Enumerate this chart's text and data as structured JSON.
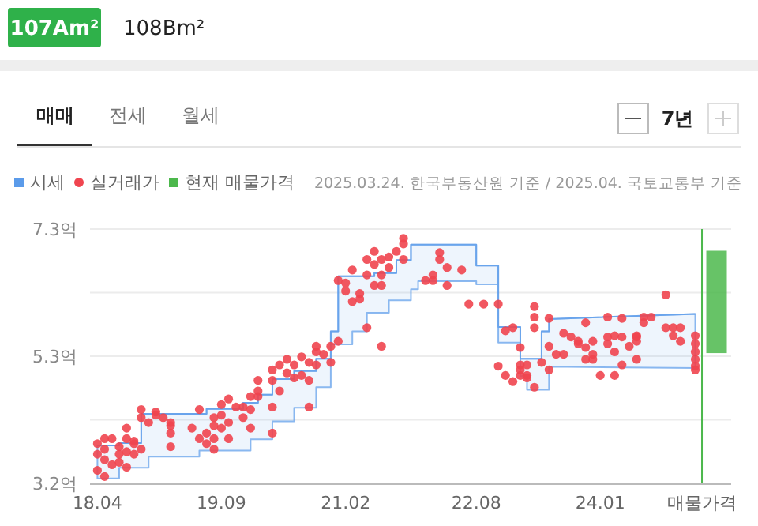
{
  "chart_data": {
    "type": "scatter",
    "annotations": [
      "107Am²",
      "108Bm²",
      "매매",
      "전세",
      "월세",
      "7년",
      "2025.03.24. 한국부동산원 기준 / 2025.04. 국토교통부 기준"
    ],
    "xlim": [
      "2018-03",
      "2025-07"
    ],
    "xticks": [
      {
        "value": "2018-04",
        "label": "18.04"
      },
      {
        "value": "2019-09",
        "label": "19.09"
      },
      {
        "value": "2021-02",
        "label": "21.02"
      },
      {
        "value": "2022-08",
        "label": "22.08"
      },
      {
        "value": "2024-01",
        "label": "24.01"
      },
      {
        "value": "2025-03",
        "label": "매물가격"
      }
    ],
    "ylim": [
      3.2,
      7.3
    ],
    "yticks": [
      {
        "value": 3.2,
        "label": "3.2억"
      },
      {
        "value": 4.225,
        "label": null
      },
      {
        "value": 5.25,
        "label": "5.3억"
      },
      {
        "value": 6.275,
        "label": null
      },
      {
        "value": 7.3,
        "label": "7.3억"
      }
    ],
    "grid": "y",
    "legend": "top left",
    "ref_lines": [
      {
        "axis": "x",
        "value": "2025-03",
        "color": "#4cb84c"
      }
    ],
    "series": [
      {
        "name": "시세",
        "type": "line",
        "color": "#5b9bea",
        "x": [
          "2018-04",
          "2018-07",
          "2018-07",
          "2018-10",
          "2018-10",
          "2018-11",
          "2018-11",
          "2019-06",
          "2019-06",
          "2019-07",
          "2019-07",
          "2019-12",
          "2019-12",
          "2020-01",
          "2020-01",
          "2020-02",
          "2020-02",
          "2020-04",
          "2020-04",
          "2020-07",
          "2020-07",
          "2020-10",
          "2020-10",
          "2020-12",
          "2020-12",
          "2021-01",
          "2021-01",
          "2021-03",
          "2021-03",
          "2021-05",
          "2021-05",
          "2021-06",
          "2021-06",
          "2021-08",
          "2021-08",
          "2021-09",
          "2021-09",
          "2021-11",
          "2021-11",
          "2021-12",
          "2021-12",
          "2022-08",
          "2022-08",
          "2022-11",
          "2022-11",
          "2023-02",
          "2023-02",
          "2023-03",
          "2023-03",
          "2023-05",
          "2023-05",
          "2023-06",
          "2023-06",
          "2025-02"
        ],
        "values": [
          3.81,
          3.81,
          3.85,
          3.85,
          4.32,
          4.32,
          4.32,
          4.32,
          4.32,
          4.32,
          4.4,
          4.4,
          4.5,
          4.5,
          4.5,
          4.5,
          4.63,
          4.63,
          4.88,
          4.88,
          5.01,
          5.01,
          5.21,
          5.21,
          5.65,
          5.65,
          6.54,
          6.54,
          6.54,
          6.54,
          6.54,
          6.54,
          6.59,
          6.59,
          6.59,
          6.59,
          6.8,
          6.8,
          7.05,
          7.05,
          7.05,
          7.05,
          6.71,
          6.71,
          5.72,
          5.72,
          5.21,
          5.21,
          5.21,
          5.21,
          5.65,
          5.65,
          5.85,
          5.93
        ],
        "upper": [
          3.81,
          3.81,
          3.85,
          3.85,
          4.32,
          4.32,
          4.32,
          4.32,
          4.32,
          4.32,
          4.4,
          4.4,
          4.5,
          4.5,
          4.5,
          4.5,
          4.63,
          4.63,
          4.88,
          4.88,
          5.01,
          5.01,
          5.21,
          5.21,
          5.65,
          5.65,
          6.54,
          6.54,
          6.54,
          6.54,
          6.54,
          6.54,
          6.59,
          6.59,
          6.59,
          6.59,
          6.8,
          6.8,
          7.05,
          7.05,
          7.05,
          7.05,
          6.71,
          6.71,
          5.72,
          5.72,
          5.21,
          5.21,
          5.21,
          5.21,
          5.65,
          5.65,
          5.85,
          5.93
        ],
        "lower": [
          3.28,
          3.28,
          3.45,
          3.45,
          3.45,
          3.45,
          3.63,
          3.63,
          3.73,
          3.73,
          3.73,
          3.73,
          3.73,
          3.73,
          3.91,
          3.91,
          3.91,
          3.91,
          4.2,
          4.2,
          4.42,
          4.42,
          4.75,
          4.75,
          5.44,
          5.44,
          5.44,
          5.44,
          5.65,
          5.65,
          5.95,
          5.95,
          5.95,
          5.95,
          6.15,
          6.15,
          6.15,
          6.15,
          6.33,
          6.33,
          6.46,
          6.46,
          6.41,
          6.41,
          5.47,
          5.47,
          4.93,
          4.93,
          4.71,
          4.71,
          4.71,
          4.71,
          5.08,
          5.06
        ]
      },
      {
        "name": "실거래가",
        "marker": "circle",
        "color": "#f0454f",
        "x": [
          "2018-04",
          "2018-04",
          "2018-04",
          "2018-05",
          "2018-05",
          "2018-05",
          "2018-06",
          "2018-06",
          "2018-07",
          "2018-07",
          "2018-07",
          "2018-08",
          "2018-08",
          "2018-08",
          "2018-09",
          "2018-09",
          "2018-09",
          "2018-10",
          "2018-08",
          "2018-05",
          "2018-10",
          "2018-10",
          "2018-12",
          "2018-11",
          "2019-01",
          "2019-02",
          "2019-02",
          "2019-02",
          "2019-02",
          "2018-12",
          "2019-05",
          "2019-06",
          "2019-06",
          "2019-07",
          "2019-07",
          "2019-08",
          "2019-08",
          "2019-08",
          "2019-09",
          "2019-09",
          "2019-09",
          "2019-10",
          "2019-10",
          "2019-10",
          "2019-11",
          "2019-08",
          "2019-12",
          "2019-12",
          "2020-01",
          "2020-01",
          "2020-01",
          "2020-02",
          "2020-02",
          "2020-02",
          "2020-04",
          "2020-04",
          "2020-04",
          "2020-04",
          "2020-05",
          "2020-05",
          "2020-06",
          "2020-06",
          "2020-07",
          "2020-07",
          "2020-08",
          "2020-08",
          "2020-09",
          "2020-09",
          "2020-09",
          "2020-10",
          "2020-10",
          "2020-10",
          "2020-11",
          "2020-12",
          "2020-12",
          "2021-01",
          "2021-01",
          "2021-02",
          "2021-02",
          "2021-03",
          "2021-03",
          "2021-04",
          "2021-04",
          "2021-05",
          "2021-05",
          "2021-05",
          "2021-06",
          "2021-06",
          "2021-06",
          "2021-07",
          "2021-07",
          "2021-07",
          "2021-07",
          "2021-08",
          "2021-08",
          "2021-09",
          "2021-10",
          "2021-10",
          "2021-10",
          "2022-01",
          "2022-02",
          "2022-02",
          "2022-03",
          "2022-03",
          "2022-04",
          "2022-06",
          "2022-04",
          "2022-07",
          "2022-09",
          "2022-11",
          "2022-11",
          "2022-12",
          "2022-12",
          "2023-01",
          "2023-01",
          "2023-02",
          "2023-02",
          "2023-02",
          "2023-02",
          "2023-03",
          "2023-03",
          "2023-03",
          "2023-04",
          "2023-04",
          "2023-04",
          "2023-04",
          "2023-05",
          "2023-06",
          "2023-06",
          "2023-06",
          "2023-07",
          "2023-08",
          "2023-08",
          "2023-09",
          "2023-10",
          "2023-10",
          "2023-11",
          "2023-11",
          "2023-11",
          "2023-12",
          "2023-12",
          "2023-12",
          "2024-01",
          "2024-02",
          "2024-02",
          "2024-02",
          "2024-03",
          "2024-03",
          "2024-03",
          "2024-04",
          "2024-04",
          "2024-04",
          "2024-05",
          "2024-06",
          "2024-06",
          "2024-06",
          "2024-06",
          "2024-07",
          "2024-07",
          "2024-08",
          "2024-10",
          "2024-10",
          "2024-11",
          "2024-11",
          "2024-12",
          "2024-12",
          "2025-02",
          "2025-02",
          "2025-02",
          "2025-02",
          "2025-02",
          "2025-02"
        ],
        "values": [
          3.67,
          3.41,
          3.84,
          3.31,
          3.58,
          3.75,
          3.92,
          3.5,
          3.67,
          3.79,
          3.54,
          3.92,
          3.71,
          3.46,
          3.84,
          3.67,
          3.88,
          3.75,
          4.09,
          3.92,
          4.39,
          4.26,
          4.35,
          4.18,
          4.26,
          4.13,
          4.01,
          4.18,
          3.79,
          4.3,
          4.09,
          3.92,
          4.39,
          4.01,
          3.84,
          4.26,
          4.13,
          3.92,
          4.47,
          4.09,
          4.3,
          4.56,
          3.92,
          4.18,
          4.43,
          3.75,
          4.43,
          4.26,
          4.6,
          4.39,
          4.09,
          4.86,
          4.69,
          4.6,
          4.01,
          4.43,
          5.03,
          4.86,
          5.11,
          4.69,
          5.2,
          4.98,
          4.9,
          5.11,
          5.24,
          4.94,
          5.15,
          4.43,
          4.86,
          5.41,
          5.32,
          5.11,
          5.28,
          5.41,
          5.15,
          5.49,
          6.47,
          6.43,
          6.3,
          6.13,
          6.64,
          6.26,
          6.17,
          5.71,
          6.81,
          6.56,
          6.39,
          6.73,
          6.94,
          5.41,
          6.81,
          6.56,
          6.39,
          6.85,
          6.68,
          6.94,
          7.06,
          6.81,
          7.15,
          6.47,
          6.56,
          6.47,
          6.92,
          6.81,
          6.68,
          6.64,
          6.39,
          6.09,
          6.09,
          6.09,
          5.09,
          4.94,
          5.66,
          4.84,
          5.71,
          5.11,
          4.94,
          5.03,
          5.39,
          4.94,
          5.11,
          4.9,
          5.71,
          6.05,
          4.75,
          5.88,
          5.15,
          5.86,
          5.03,
          5.41,
          5.28,
          5.28,
          5.62,
          5.56,
          5.45,
          5.49,
          5.2,
          5.39,
          5.79,
          5.28,
          5.49,
          5.2,
          4.94,
          5.88,
          5.56,
          5.45,
          5.32,
          5.58,
          4.94,
          5.11,
          5.86,
          5.56,
          5.41,
          5.56,
          5.58,
          5.2,
          5.49,
          5.88,
          5.79,
          5.88,
          6.24,
          5.71,
          5.58,
          5.71,
          5.49,
          5.71,
          5.09,
          5.03,
          5.58,
          5.32,
          5.2,
          5.45
        ]
      },
      {
        "name": "현재 매물가격",
        "type": "bar",
        "color": "#4cb84c",
        "x": [
          "2025-05"
        ],
        "base": [
          5.3
        ],
        "values": [
          1.65
        ]
      }
    ]
  }
}
